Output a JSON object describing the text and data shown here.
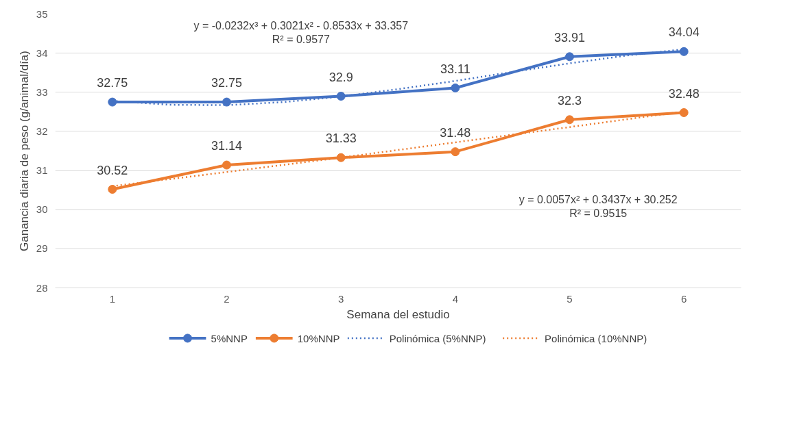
{
  "chart_data": {
    "type": "line",
    "xlabel": "Semana del estudio",
    "ylabel": "Ganancia diaria de peso (g/animal/día)",
    "x": [
      1,
      2,
      3,
      4,
      5,
      6
    ],
    "xlim": [
      0.5,
      6.5
    ],
    "xticks": [
      1,
      2,
      3,
      4,
      5,
      6
    ],
    "ylim": [
      28,
      35
    ],
    "yticks": [
      28,
      29,
      30,
      31,
      32,
      33,
      34,
      35
    ],
    "series": [
      {
        "name": "5%NNP",
        "color": "#4472c4",
        "values": [
          32.75,
          32.75,
          32.9,
          33.11,
          33.91,
          34.04
        ],
        "marker": "circle",
        "line_style": "solid",
        "data_labels": true
      },
      {
        "name": "10%NNP",
        "color": "#ed7d31",
        "values": [
          30.52,
          31.14,
          31.33,
          31.48,
          32.3,
          32.48
        ],
        "marker": "circle",
        "line_style": "solid",
        "data_labels": true
      },
      {
        "name": "Polinómica (5%NNP)",
        "color": "#4472c4",
        "x": [
          1,
          1.5,
          2,
          2.5,
          3,
          3.5,
          4,
          4.5,
          5,
          5.5,
          6
        ],
        "values": [
          32.78,
          32.68,
          32.67,
          32.75,
          32.89,
          33.08,
          33.29,
          33.52,
          33.74,
          33.94,
          34.1
        ],
        "marker": "none",
        "line_style": "dotted"
      },
      {
        "name": "Polinómica (10%NNP)",
        "color": "#ed7d31",
        "values": [
          30.6,
          30.96,
          31.33,
          31.72,
          32.11,
          32.51
        ],
        "marker": "none",
        "line_style": "dotted"
      }
    ],
    "annotations": [
      "y = -0.0232x³ + 0.3021x² - 0.8533x + 33.357",
      "R² = 0.9577",
      "y = 0.0057x² + 0.3437x + 30.252",
      "R² = 0.9515"
    ],
    "grid": "y",
    "legend": "bottom"
  }
}
